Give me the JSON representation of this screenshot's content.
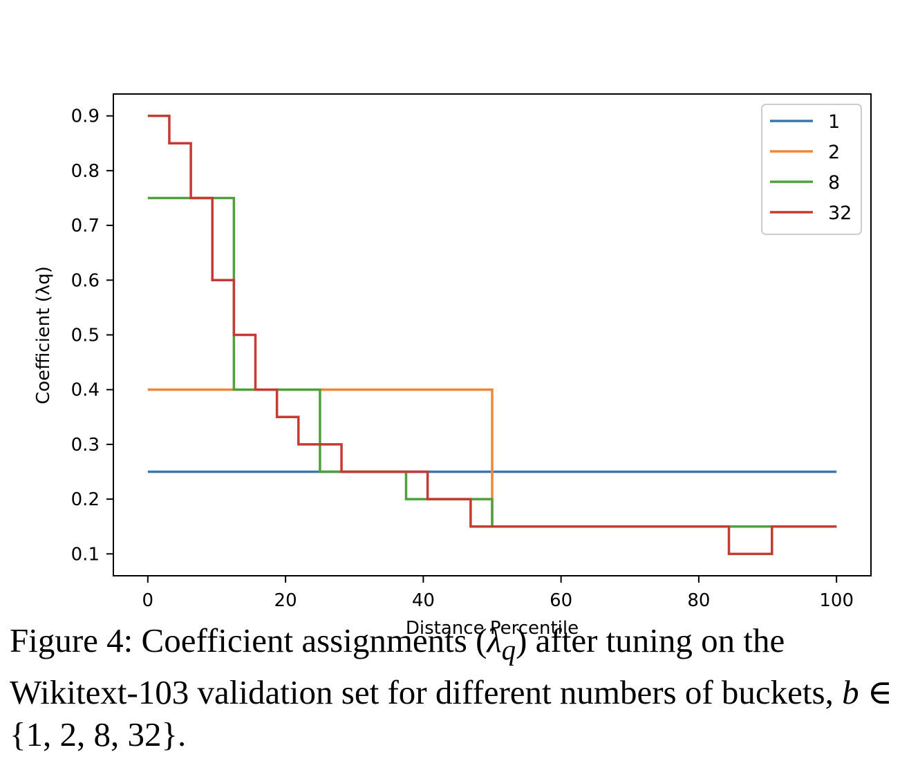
{
  "chart_data": {
    "type": "line",
    "step": "post",
    "xlabel": "Distance Percentile",
    "ylabel": "Coefficient (λq)",
    "xlim": [
      -5,
      105
    ],
    "ylim": [
      0.06,
      0.94
    ],
    "xticks": [
      0,
      20,
      40,
      60,
      80,
      100
    ],
    "yticks": [
      0.1,
      0.2,
      0.3,
      0.4,
      0.5,
      0.6,
      0.7,
      0.8,
      0.9
    ],
    "legend_position": "top-right",
    "grid": false,
    "series": [
      {
        "name": "1",
        "color": "#3a76af",
        "x": [
          0,
          100
        ],
        "y": [
          0.25,
          0.25
        ]
      },
      {
        "name": "2",
        "color": "#ef8536",
        "x": [
          0,
          50,
          100
        ],
        "y": [
          0.4,
          0.15,
          0.15
        ]
      },
      {
        "name": "8",
        "color": "#519e3e",
        "x": [
          0,
          12.5,
          25,
          37.5,
          50,
          62.5,
          75,
          87.5,
          100
        ],
        "y": [
          0.75,
          0.4,
          0.25,
          0.2,
          0.15,
          0.15,
          0.15,
          0.15,
          0.15
        ]
      },
      {
        "name": "32",
        "color": "#c53a32",
        "x": [
          0,
          3.125,
          6.25,
          9.375,
          12.5,
          15.625,
          18.75,
          21.875,
          25,
          28.125,
          31.25,
          34.375,
          37.5,
          40.625,
          43.75,
          46.875,
          50,
          53.125,
          56.25,
          59.375,
          62.5,
          65.625,
          68.75,
          71.875,
          75,
          78.125,
          81.25,
          84.375,
          87.5,
          90.625,
          93.75,
          96.875,
          100
        ],
        "y": [
          0.9,
          0.85,
          0.75,
          0.6,
          0.5,
          0.4,
          0.35,
          0.3,
          0.3,
          0.25,
          0.25,
          0.25,
          0.25,
          0.2,
          0.2,
          0.15,
          0.15,
          0.15,
          0.15,
          0.15,
          0.15,
          0.15,
          0.15,
          0.15,
          0.15,
          0.15,
          0.15,
          0.1,
          0.1,
          0.15,
          0.15,
          0.15,
          0.15
        ]
      }
    ]
  },
  "caption": {
    "lead": "Figure 4: Coefficient assignments (",
    "lambda": "λ",
    "sub_q": "q",
    "after_lambda": ") after tuning on the Wikitext-103 validation set for different numbers of buckets, ",
    "b_var": "b",
    "set_text": " ∈ {1, 2, 8, 32}."
  }
}
